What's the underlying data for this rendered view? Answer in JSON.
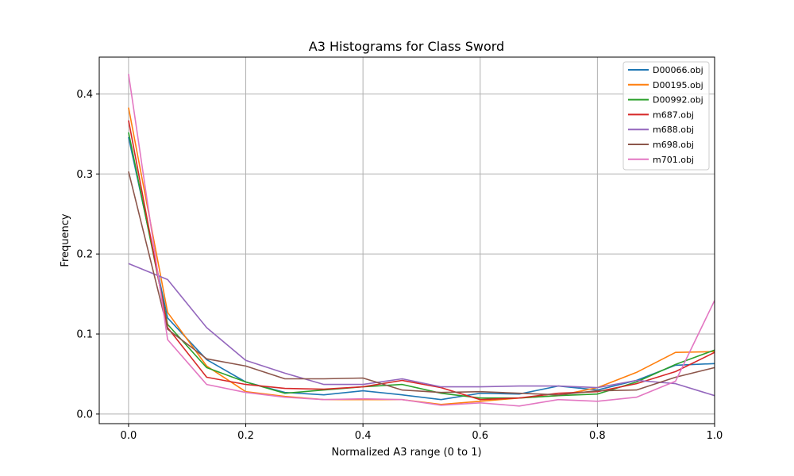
{
  "chart_data": {
    "type": "line",
    "title": "A3 Histograms for Class Sword",
    "xlabel": "Normalized A3 range (0 to 1)",
    "ylabel": "Frequency",
    "xlim": [
      -0.05,
      1.0
    ],
    "ylim": [
      -0.012,
      0.446
    ],
    "xticks": [
      0.0,
      0.2,
      0.4,
      0.6,
      0.8,
      1.0
    ],
    "xtick_labels": [
      "0.0",
      "0.2",
      "0.4",
      "0.6",
      "0.8",
      "1.0"
    ],
    "yticks": [
      0.0,
      0.1,
      0.2,
      0.3,
      0.4
    ],
    "ytick_labels": [
      "0.0",
      "0.1",
      "0.2",
      "0.3",
      "0.4"
    ],
    "grid": true,
    "legend_position": "top-right",
    "x": [
      0.0,
      0.0667,
      0.1333,
      0.2,
      0.2667,
      0.3333,
      0.4,
      0.4667,
      0.5333,
      0.6,
      0.6667,
      0.7333,
      0.8,
      0.8667,
      0.9333,
      1.0
    ],
    "series": [
      {
        "name": "D00066.obj",
        "color": "#1f77b4",
        "values": [
          0.346,
          0.12,
          0.068,
          0.04,
          0.027,
          0.024,
          0.029,
          0.024,
          0.018,
          0.026,
          0.025,
          0.035,
          0.03,
          0.042,
          0.061,
          0.063
        ]
      },
      {
        "name": "D00195.obj",
        "color": "#ff7f0e",
        "values": [
          0.383,
          0.127,
          0.06,
          0.028,
          0.022,
          0.018,
          0.018,
          0.018,
          0.012,
          0.016,
          0.02,
          0.023,
          0.033,
          0.052,
          0.077,
          0.078
        ]
      },
      {
        "name": "D00992.obj",
        "color": "#2ca02c",
        "values": [
          0.352,
          0.112,
          0.058,
          0.04,
          0.026,
          0.03,
          0.034,
          0.037,
          0.026,
          0.02,
          0.02,
          0.023,
          0.025,
          0.04,
          0.062,
          0.08
        ]
      },
      {
        "name": "m687.obj",
        "color": "#d62728",
        "values": [
          0.367,
          0.108,
          0.046,
          0.037,
          0.032,
          0.031,
          0.034,
          0.042,
          0.033,
          0.018,
          0.02,
          0.026,
          0.028,
          0.038,
          0.053,
          0.077
        ]
      },
      {
        "name": "m688.obj",
        "color": "#9467bd",
        "values": [
          0.188,
          0.168,
          0.108,
          0.067,
          0.051,
          0.037,
          0.037,
          0.044,
          0.034,
          0.034,
          0.035,
          0.035,
          0.033,
          0.042,
          0.038,
          0.023
        ]
      },
      {
        "name": "m698.obj",
        "color": "#8c564b",
        "values": [
          0.303,
          0.106,
          0.069,
          0.06,
          0.044,
          0.044,
          0.045,
          0.03,
          0.027,
          0.028,
          0.026,
          0.024,
          0.029,
          0.03,
          0.046,
          0.058
        ]
      },
      {
        "name": "m701.obj",
        "color": "#e377c2",
        "values": [
          0.425,
          0.093,
          0.037,
          0.027,
          0.021,
          0.018,
          0.019,
          0.018,
          0.011,
          0.014,
          0.01,
          0.018,
          0.016,
          0.021,
          0.041,
          0.142
        ]
      }
    ]
  }
}
